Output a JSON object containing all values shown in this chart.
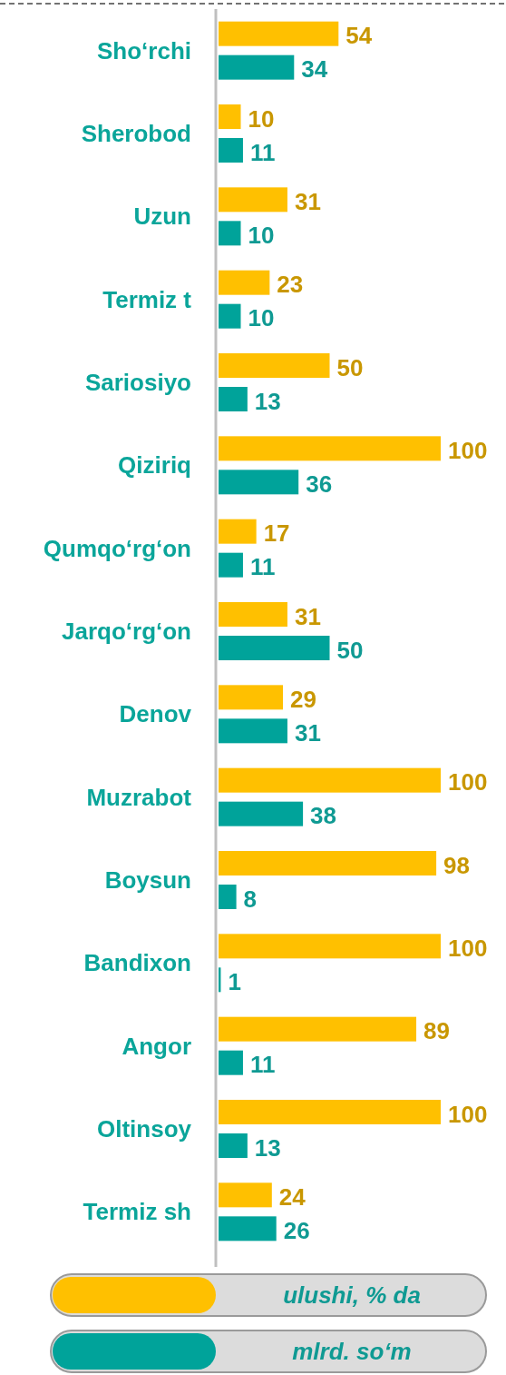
{
  "chart_data": {
    "type": "bar",
    "orientation": "horizontal",
    "categories": [
      "Sho‘rchi",
      "Sherobod",
      "Uzun",
      "Termiz t",
      "Sariosiyo",
      "Qiziriq",
      "Qumqo‘rg‘on",
      "Jarqo‘rg‘on",
      "Denov",
      "Muzrabot",
      "Boysun",
      "Bandixon",
      "Angor",
      "Oltinsoy",
      "Termiz sh"
    ],
    "series": [
      {
        "name": "ulushi, % da",
        "color": "#ffc000",
        "values": [
          54,
          10,
          31,
          23,
          50,
          100,
          17,
          31,
          29,
          100,
          98,
          100,
          89,
          100,
          24
        ]
      },
      {
        "name": "mlrd. so‘m",
        "color": "#00a39a",
        "values": [
          34,
          11,
          10,
          10,
          13,
          36,
          11,
          50,
          31,
          38,
          8,
          1,
          11,
          13,
          26
        ]
      }
    ],
    "data_labels": true,
    "legend": "bottom",
    "tick_labels": "y"
  }
}
